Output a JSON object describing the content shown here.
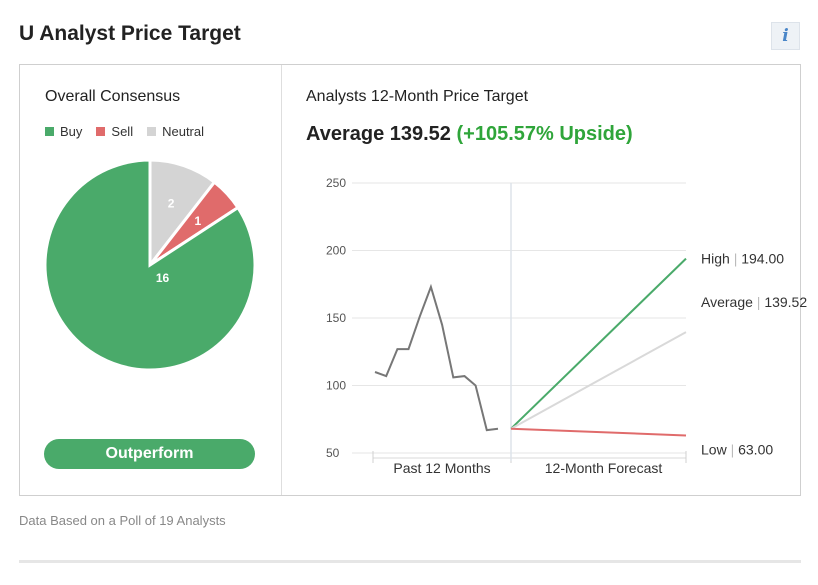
{
  "page": {
    "title": "U Analyst Price Target",
    "info_icon": "info-icon",
    "footnote": "Data Based on a Poll of 19 Analysts"
  },
  "consensus": {
    "title": "Overall Consensus",
    "legend": [
      {
        "label": "Buy",
        "color": "#4aaa6a"
      },
      {
        "label": "Sell",
        "color": "#e06b6b"
      },
      {
        "label": "Neutral",
        "color": "#d4d4d4"
      }
    ],
    "button_label": "Outperform"
  },
  "target": {
    "title": "Analysts 12-Month Price Target",
    "average_text": "Average 139.52",
    "upside_text": "(+105.57% Upside)"
  },
  "chart_data": [
    {
      "type": "pie",
      "slices": [
        {
          "label": "Buy",
          "value": 16,
          "color": "#4aaa6a"
        },
        {
          "label": "Sell",
          "value": 1,
          "color": "#e06b6b"
        },
        {
          "label": "Neutral",
          "value": 2,
          "color": "#d4d4d4"
        }
      ]
    },
    {
      "type": "line",
      "ylim": [
        50,
        250
      ],
      "y_ticks": [
        250,
        200,
        150,
        100,
        50
      ],
      "x_sections": [
        "Past 12 Months",
        "12-Month Forecast"
      ],
      "history": {
        "values": [
          110,
          107,
          127,
          127,
          151,
          173,
          145,
          106,
          107,
          100,
          67,
          68
        ],
        "color": "#777777"
      },
      "forecast": {
        "start": 68,
        "lines": [
          {
            "label": "High",
            "value": 194.0,
            "value_text": "194.00",
            "color": "#4aaa6a"
          },
          {
            "label": "Average",
            "value": 139.52,
            "value_text": "139.52",
            "color": "#d9d9d9"
          },
          {
            "label": "Low",
            "value": 63.0,
            "value_text": "63.00",
            "color": "#e06b6b"
          }
        ]
      }
    }
  ]
}
